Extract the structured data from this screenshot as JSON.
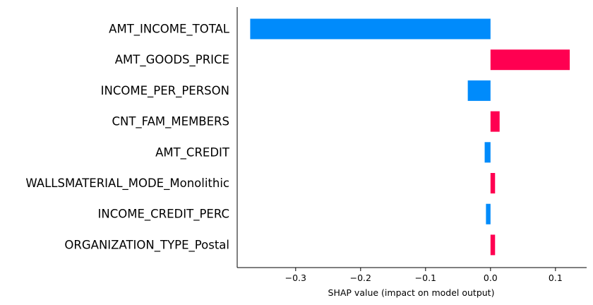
{
  "chart_data": {
    "type": "bar",
    "orientation": "horizontal",
    "categories": [
      "AMT_INCOME_TOTAL",
      "AMT_GOODS_PRICE",
      "INCOME_PER_PERSON",
      "CNT_FAM_MEMBERS",
      "AMT_CREDIT",
      "WALLSMATERIAL_MODE_Monolithic",
      "INCOME_CREDIT_PERC",
      "ORGANIZATION_TYPE_Postal"
    ],
    "values": [
      -0.37,
      0.122,
      -0.035,
      0.014,
      -0.009,
      0.007,
      -0.007,
      0.007
    ],
    "xlabel": "SHAP value (impact on model output)",
    "ylabel": "",
    "xlim": [
      -0.39,
      0.148
    ],
    "xticks": [
      -0.3,
      -0.2,
      -0.1,
      0.0,
      0.1
    ],
    "xtick_labels": [
      "−0.3",
      "−0.2",
      "−0.1",
      "0.0",
      "0.1"
    ],
    "colors": {
      "positive": "#ff0051",
      "negative": "#008bfb"
    },
    "grid": false,
    "legend": "none"
  }
}
